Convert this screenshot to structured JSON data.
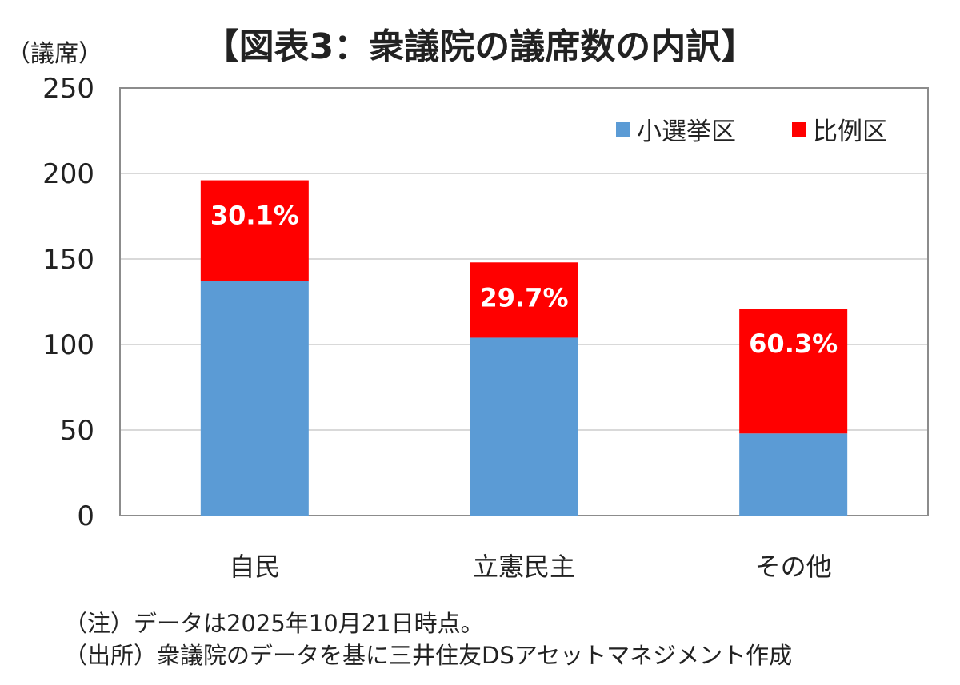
{
  "chart_data": {
    "type": "bar",
    "stacked": true,
    "title": "【図表3：衆議院の議席数の内訳】",
    "ylabel": "（議席）",
    "xlabel": "",
    "categories": [
      "自民",
      "立憲民主",
      "その他"
    ],
    "series": [
      {
        "name": "小選挙区",
        "color": "#5B9BD5",
        "values": [
          137,
          104,
          48
        ]
      },
      {
        "name": "比例区",
        "color": "#FF0000",
        "values": [
          59,
          44,
          73
        ]
      }
    ],
    "data_labels": [
      "30.1%",
      "29.7%",
      "60.3%"
    ],
    "ylim": [
      0,
      250
    ],
    "yticks": [
      0,
      50,
      100,
      150,
      200,
      250
    ],
    "grid": true,
    "legend": "top-right"
  },
  "notes": [
    "（注）データは2025年10月21日時点。",
    "（出所）衆議院のデータを基に三井住友DSアセットマネジメント作成"
  ]
}
